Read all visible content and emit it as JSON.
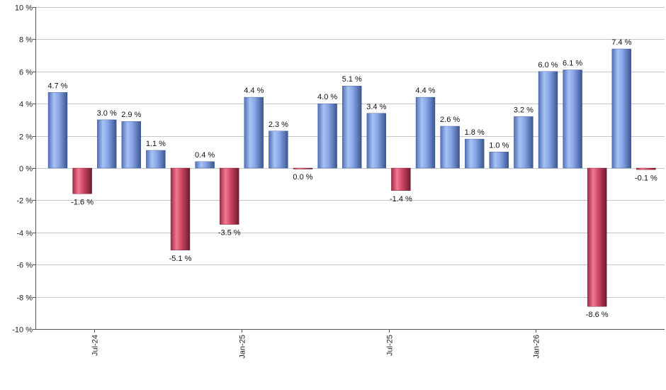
{
  "chart_data": {
    "type": "bar",
    "title": "",
    "xlabel": "",
    "ylabel": "",
    "ylim": [
      -10,
      10
    ],
    "yticks": [
      {
        "value": 10,
        "label": "10 %"
      },
      {
        "value": 8,
        "label": "8 %"
      },
      {
        "value": 6,
        "label": "6 %"
      },
      {
        "value": 4,
        "label": "4 %"
      },
      {
        "value": 2,
        "label": "2 %"
      },
      {
        "value": 0,
        "label": "0 %"
      },
      {
        "value": -2,
        "label": "-2 %"
      },
      {
        "value": -4,
        "label": "-4 %"
      },
      {
        "value": -6,
        "label": "-6 %"
      },
      {
        "value": -8,
        "label": "-8 %"
      },
      {
        "value": -10,
        "label": "-10 %"
      }
    ],
    "xticks": [
      {
        "index": 2,
        "label": "Jul-24"
      },
      {
        "index": 8,
        "label": "Jan-25"
      },
      {
        "index": 14,
        "label": "Jul-25"
      },
      {
        "index": 20,
        "label": "Jan-26"
      }
    ],
    "grid": true,
    "colors": {
      "positive": "#6e8fd8",
      "negative": "#c23a5a"
    },
    "values": [
      4.7,
      -1.6,
      3.0,
      2.9,
      1.1,
      -5.1,
      0.4,
      -3.5,
      4.4,
      2.3,
      -0.05,
      4.0,
      5.1,
      3.4,
      -1.4,
      4.4,
      2.6,
      1.8,
      1.0,
      3.2,
      6.0,
      6.1,
      -8.6,
      7.4,
      -0.1
    ],
    "labels": [
      "4.7 %",
      "-1.6 %",
      "3.0 %",
      "2.9 %",
      "1.1 %",
      "-5.1 %",
      "0.4 %",
      "-3.5 %",
      "4.4 %",
      "2.3 %",
      "0.0 %",
      "4.0 %",
      "5.1 %",
      "3.4 %",
      "-1.4 %",
      "4.4 %",
      "2.6 %",
      "1.8 %",
      "1.0 %",
      "3.2 %",
      "6.0 %",
      "6.1 %",
      "-8.6 %",
      "7.4 %",
      "-0.1 %"
    ]
  }
}
